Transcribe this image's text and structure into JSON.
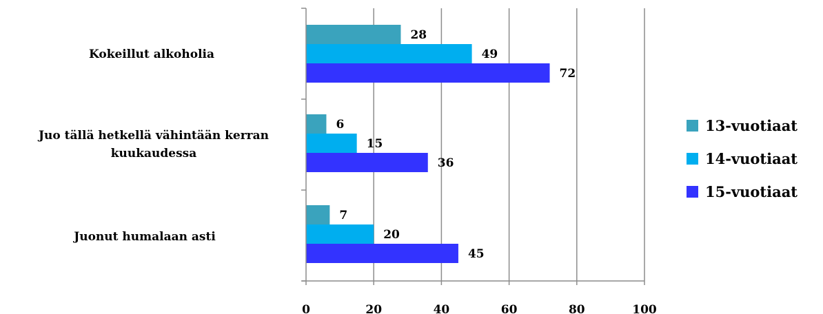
{
  "chart_data": {
    "type": "bar",
    "orientation": "horizontal",
    "categories": [
      "Kokeillut alkoholia",
      "Juo tällä hetkellä vähintään kerran kuukaudessa",
      "Juonut humalaan asti"
    ],
    "series": [
      {
        "name": "13-vuotiaat",
        "color": "#3AA3BD",
        "values": [
          28,
          6,
          7
        ]
      },
      {
        "name": "14-vuotiaat",
        "color": "#00AEEF",
        "values": [
          49,
          15,
          20
        ]
      },
      {
        "name": "15-vuotiaat",
        "color": "#3333FF",
        "values": [
          72,
          36,
          45
        ]
      }
    ],
    "xlim": [
      0,
      100
    ],
    "xticks": [
      "0",
      "20",
      "40",
      "60",
      "80",
      "100"
    ],
    "grid": true,
    "data_labels": true,
    "legend_position": "right"
  }
}
